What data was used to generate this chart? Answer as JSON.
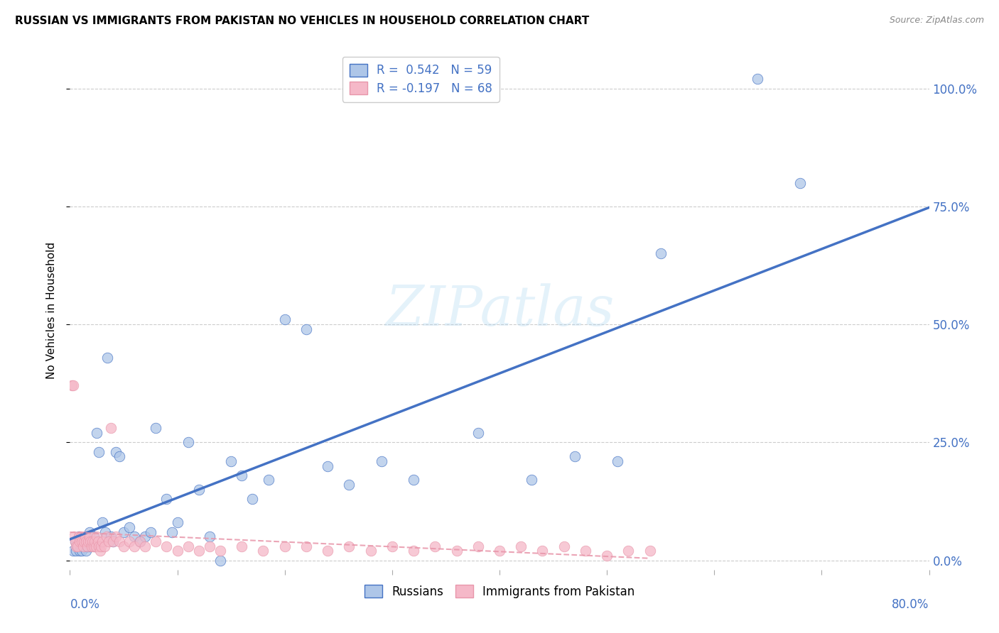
{
  "title": "RUSSIAN VS IMMIGRANTS FROM PAKISTAN NO VEHICLES IN HOUSEHOLD CORRELATION CHART",
  "source": "Source: ZipAtlas.com",
  "ylabel": "No Vehicles in Household",
  "ytick_labels": [
    "0.0%",
    "25.0%",
    "50.0%",
    "75.0%",
    "100.0%"
  ],
  "ytick_values": [
    0.0,
    0.25,
    0.5,
    0.75,
    1.0
  ],
  "xlim": [
    0.0,
    0.8
  ],
  "ylim": [
    -0.02,
    1.08
  ],
  "legend_r_russian": "R =  0.542",
  "legend_n_russian": "N = 59",
  "legend_r_pakistan": "R = -0.197",
  "legend_n_pakistan": "N = 68",
  "color_russian": "#aec6e8",
  "color_pakistan": "#f5b8c8",
  "line_color_russian": "#4472c4",
  "line_color_pakistan": "#e896aa",
  "watermark_text": "ZIPatlas",
  "russian_x": [
    0.003,
    0.005,
    0.006,
    0.007,
    0.008,
    0.009,
    0.01,
    0.011,
    0.012,
    0.013,
    0.014,
    0.015,
    0.016,
    0.017,
    0.018,
    0.019,
    0.02,
    0.022,
    0.023,
    0.025,
    0.027,
    0.03,
    0.033,
    0.035,
    0.038,
    0.04,
    0.043,
    0.046,
    0.05,
    0.055,
    0.06,
    0.065,
    0.07,
    0.075,
    0.08,
    0.09,
    0.095,
    0.1,
    0.11,
    0.12,
    0.13,
    0.14,
    0.15,
    0.16,
    0.17,
    0.185,
    0.2,
    0.22,
    0.24,
    0.26,
    0.29,
    0.32,
    0.38,
    0.43,
    0.47,
    0.51,
    0.55,
    0.64,
    0.68
  ],
  "russian_y": [
    0.02,
    0.04,
    0.02,
    0.03,
    0.05,
    0.02,
    0.03,
    0.02,
    0.04,
    0.03,
    0.05,
    0.02,
    0.03,
    0.04,
    0.06,
    0.03,
    0.04,
    0.05,
    0.03,
    0.27,
    0.23,
    0.08,
    0.06,
    0.43,
    0.05,
    0.04,
    0.23,
    0.22,
    0.06,
    0.07,
    0.05,
    0.04,
    0.05,
    0.06,
    0.28,
    0.13,
    0.06,
    0.08,
    0.25,
    0.15,
    0.05,
    0.0,
    0.21,
    0.18,
    0.13,
    0.17,
    0.51,
    0.49,
    0.2,
    0.16,
    0.21,
    0.17,
    0.27,
    0.17,
    0.22,
    0.21,
    0.65,
    1.02,
    0.8
  ],
  "pakistan_x": [
    0.002,
    0.003,
    0.004,
    0.005,
    0.006,
    0.007,
    0.008,
    0.009,
    0.01,
    0.011,
    0.012,
    0.013,
    0.014,
    0.015,
    0.016,
    0.017,
    0.018,
    0.019,
    0.02,
    0.021,
    0.022,
    0.023,
    0.024,
    0.025,
    0.026,
    0.027,
    0.028,
    0.029,
    0.03,
    0.032,
    0.034,
    0.036,
    0.038,
    0.04,
    0.043,
    0.046,
    0.05,
    0.055,
    0.06,
    0.065,
    0.07,
    0.08,
    0.09,
    0.1,
    0.11,
    0.12,
    0.13,
    0.14,
    0.16,
    0.18,
    0.2,
    0.22,
    0.24,
    0.26,
    0.28,
    0.3,
    0.32,
    0.34,
    0.36,
    0.38,
    0.4,
    0.42,
    0.44,
    0.46,
    0.48,
    0.5,
    0.52,
    0.54
  ],
  "pakistan_y": [
    0.37,
    0.37,
    0.05,
    0.04,
    0.03,
    0.03,
    0.05,
    0.04,
    0.05,
    0.04,
    0.03,
    0.04,
    0.05,
    0.04,
    0.03,
    0.04,
    0.05,
    0.04,
    0.03,
    0.04,
    0.03,
    0.04,
    0.03,
    0.05,
    0.04,
    0.03,
    0.02,
    0.03,
    0.04,
    0.03,
    0.05,
    0.04,
    0.28,
    0.04,
    0.05,
    0.04,
    0.03,
    0.04,
    0.03,
    0.04,
    0.03,
    0.04,
    0.03,
    0.02,
    0.03,
    0.02,
    0.03,
    0.02,
    0.03,
    0.02,
    0.03,
    0.03,
    0.02,
    0.03,
    0.02,
    0.03,
    0.02,
    0.03,
    0.02,
    0.03,
    0.02,
    0.03,
    0.02,
    0.03,
    0.02,
    0.01,
    0.02,
    0.02
  ]
}
